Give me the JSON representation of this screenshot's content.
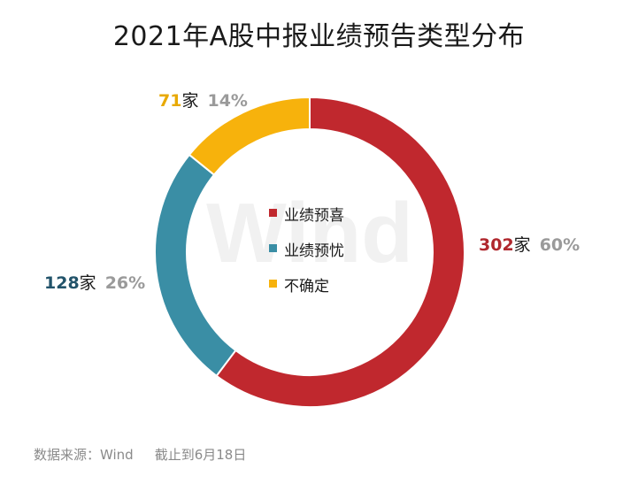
{
  "title": "2021年A股中报业绩预告类型分布",
  "watermark": "Wind",
  "source": {
    "text": "数据来源：Wind",
    "date": "截止到6月18日"
  },
  "chart_data": {
    "type": "pie",
    "variant": "donut",
    "title": "2021年A股中报业绩预告类型分布",
    "categories": [
      "业绩预喜",
      "业绩预忧",
      "不确定"
    ],
    "values": [
      302,
      128,
      71
    ],
    "unit": "家",
    "percentages": [
      "60%",
      "26%",
      "14%"
    ],
    "colors": [
      "#c0282e",
      "#3a8ea5",
      "#f7b20c"
    ],
    "label_colors": [
      "#b0282e",
      "#22536a",
      "#e8a900"
    ],
    "legend_position": "center",
    "start_angle": "top",
    "direction": "clockwise"
  }
}
